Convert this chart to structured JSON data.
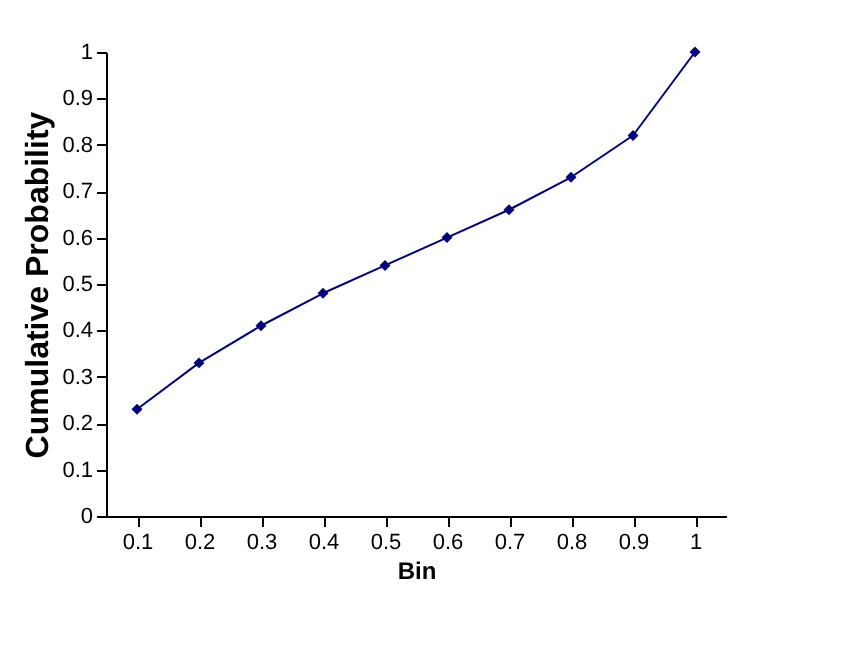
{
  "chart_data": {
    "type": "line",
    "xlabel": "Bin",
    "ylabel": "Cumulative Probability",
    "categories": [
      "0.1",
      "0.2",
      "0.3",
      "0.4",
      "0.5",
      "0.6",
      "0.7",
      "0.8",
      "0.9",
      "1"
    ],
    "series": [
      {
        "color": "#000080",
        "values": [
          0.23,
          0.33,
          0.41,
          0.48,
          0.54,
          0.6,
          0.66,
          0.73,
          0.82,
          1.0
        ]
      }
    ],
    "ylim": [
      0,
      1
    ],
    "yticks": [
      0,
      0.1,
      0.2,
      0.3,
      0.4,
      0.5,
      0.6,
      0.7,
      0.8,
      0.9,
      1
    ],
    "grid": false,
    "legend": false,
    "marker": "diamond",
    "line_style": "solid"
  }
}
